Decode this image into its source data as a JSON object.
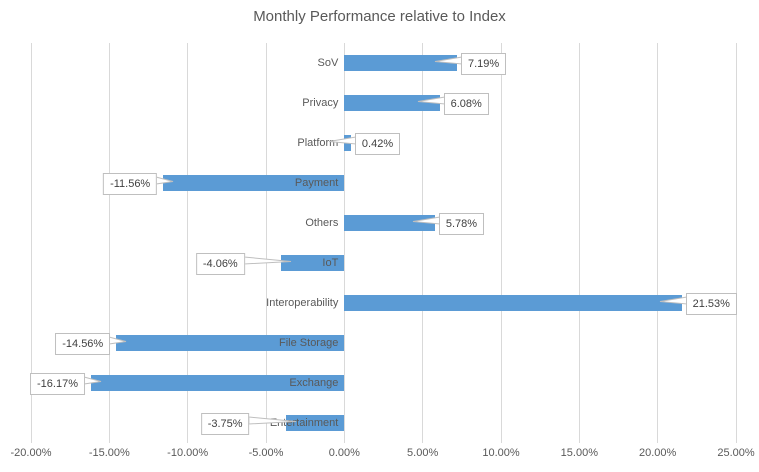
{
  "title": "Monthly Performance relative to Index",
  "chart_data": {
    "type": "bar",
    "orientation": "horizontal",
    "title": "Monthly Performance relative to Index",
    "categories": [
      "SoV",
      "Privacy",
      "Platform",
      "Payment",
      "Others",
      "IoT",
      "Interoperability",
      "File Storage",
      "Exchange",
      "Entertainment"
    ],
    "values": [
      7.19,
      6.08,
      0.42,
      -11.56,
      5.78,
      -4.06,
      21.53,
      -14.56,
      -16.17,
      -3.75
    ],
    "data_labels": [
      "7.19%",
      "6.08%",
      "0.42%",
      "-11.56%",
      "5.78%",
      "-4.06%",
      "21.53%",
      "-14.56%",
      "-16.17%",
      "-3.75%"
    ],
    "xlabel": "",
    "ylabel": "",
    "xlim": [
      -20,
      25
    ],
    "x_tick_step": 5,
    "x_tick_labels": [
      "-20.00%",
      "-15.00%",
      "-10.00%",
      "-5.00%",
      "0.00%",
      "5.00%",
      "10.00%",
      "15.00%",
      "20.00%",
      "25.00%"
    ],
    "grid": "vertical-only",
    "legend": "none",
    "data_label_style": "white-callout-boxes-with-pointer",
    "colors": {
      "bar": "#5b9bd5",
      "gridline": "#d9d9d9",
      "title_text": "#595959",
      "axis_text": "#595959",
      "category_text": "#595959",
      "callout_text": "#404040",
      "callout_border": "#bfbfbf",
      "callout_bg": "#ffffff",
      "background": "#ffffff"
    }
  }
}
